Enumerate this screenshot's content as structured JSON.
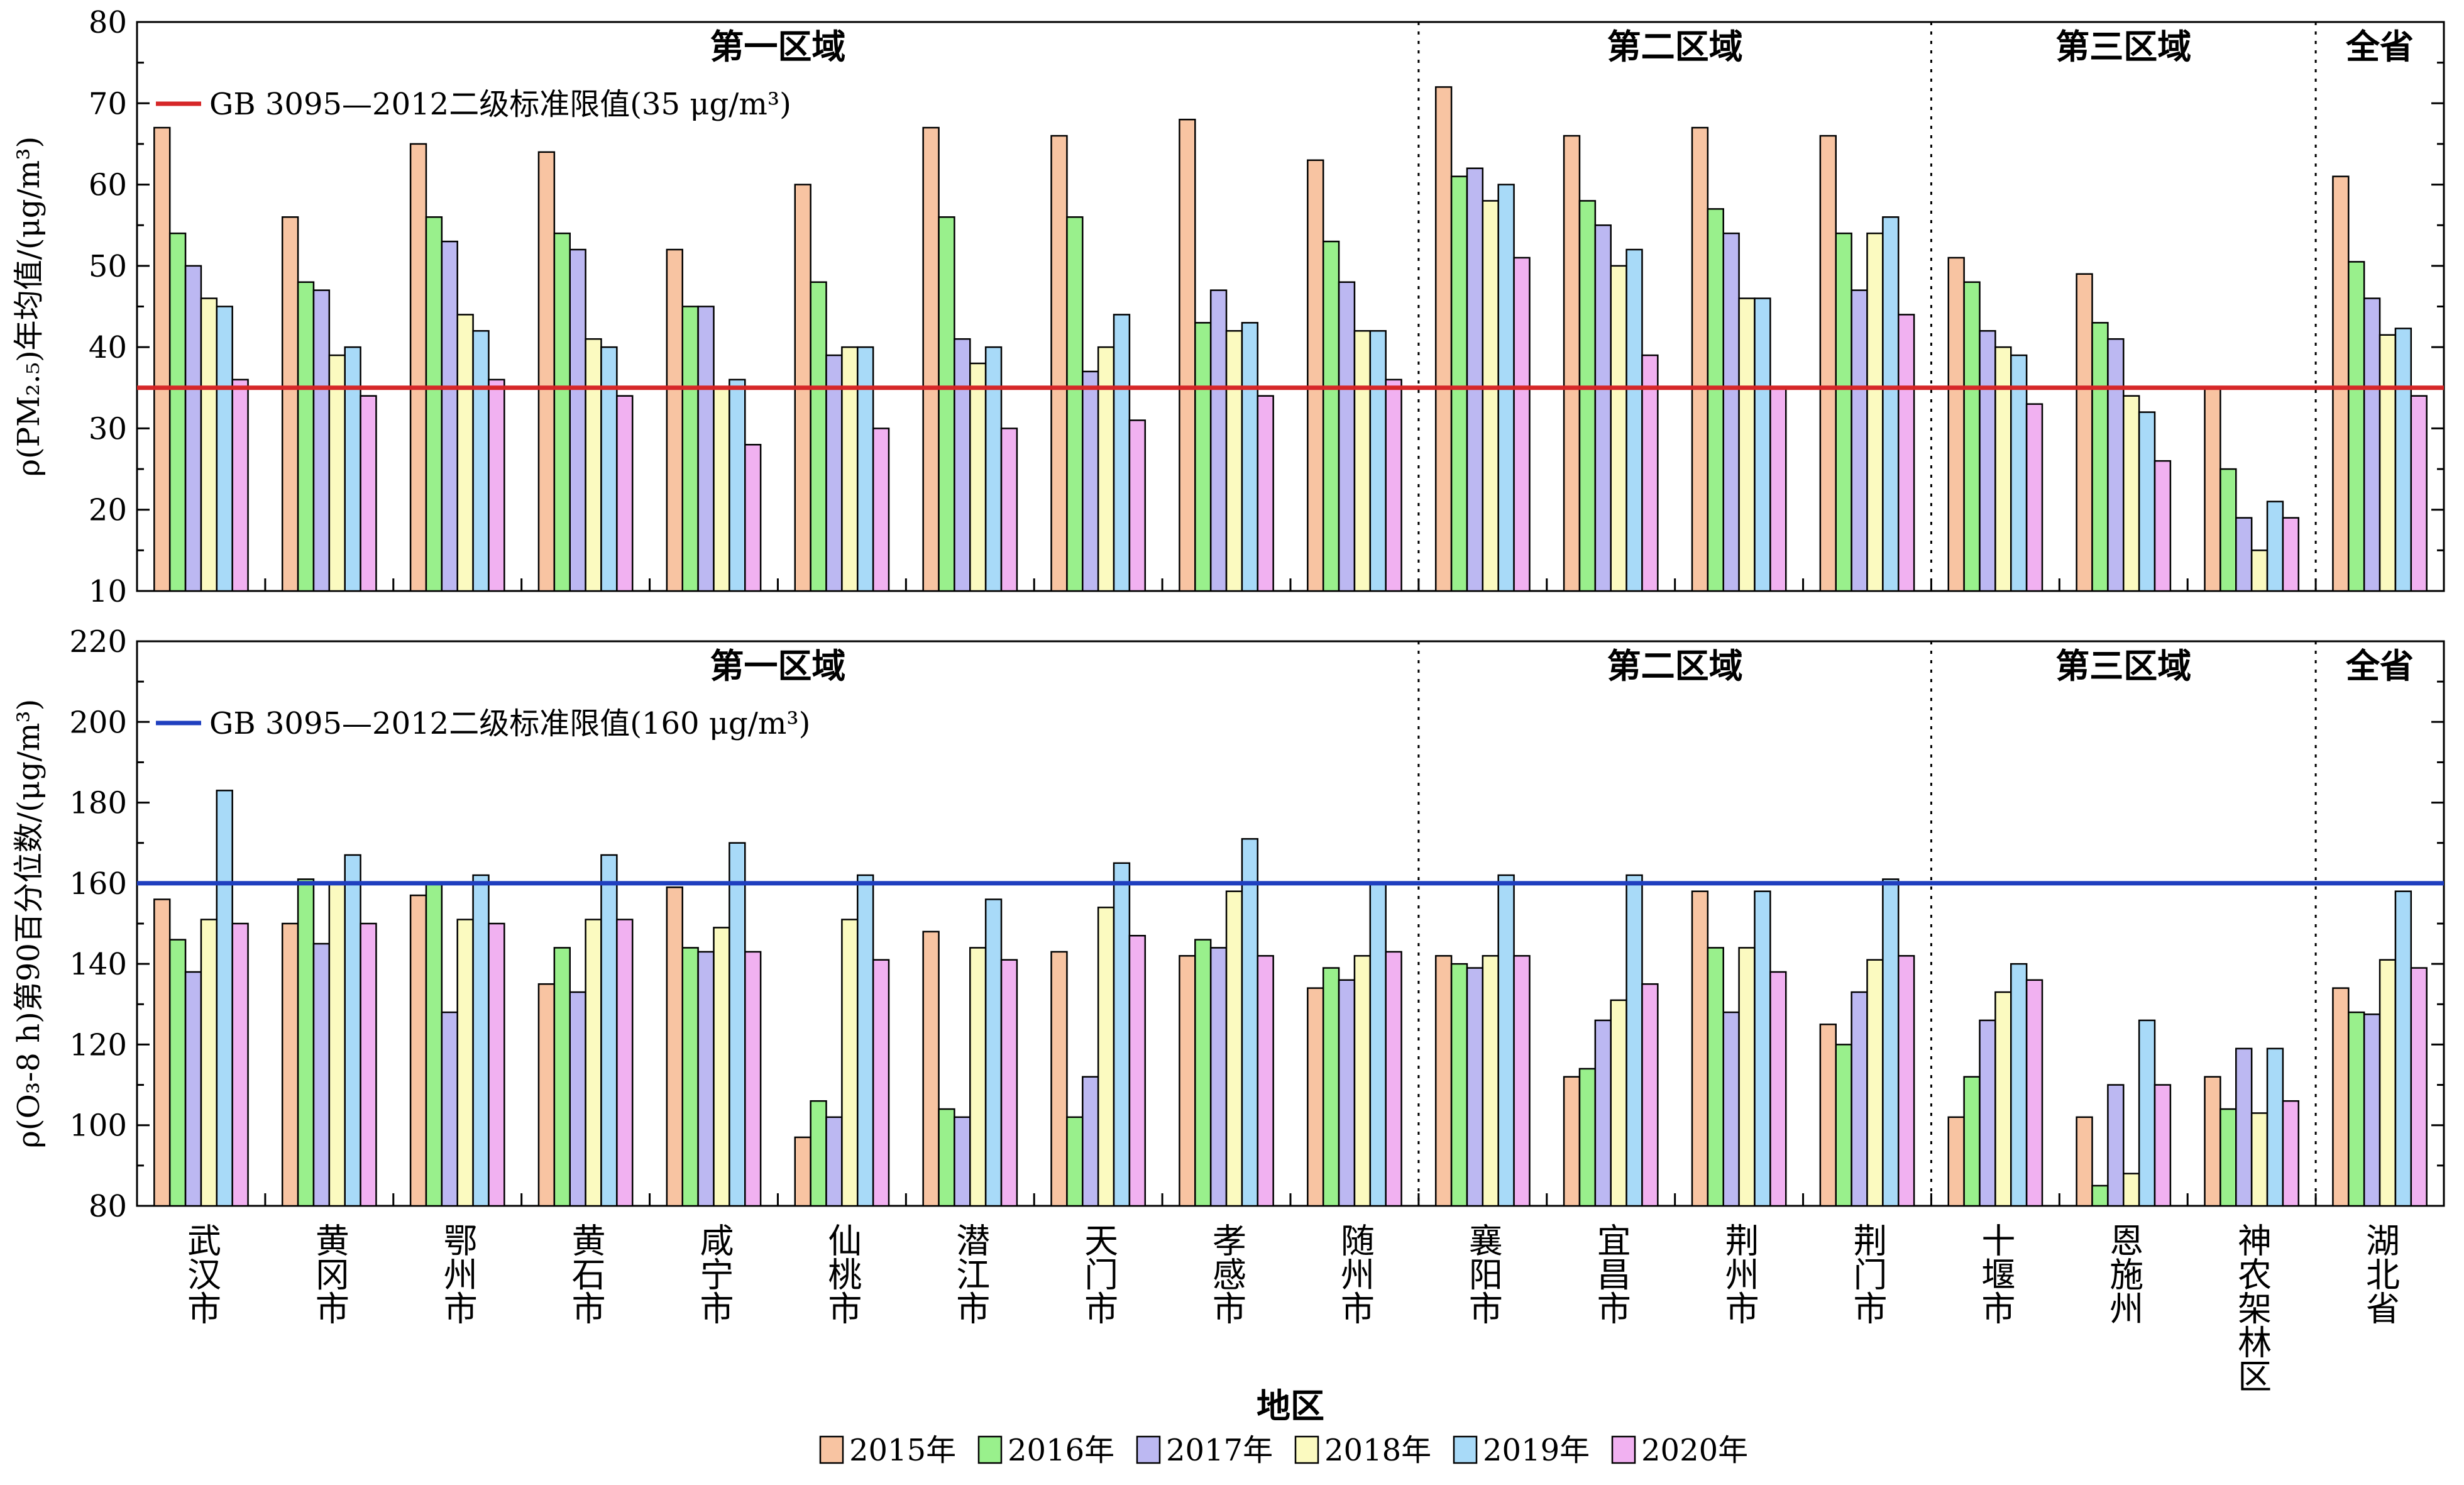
{
  "chart_data": [
    {
      "type": "bar",
      "categories": [
        "武汉市",
        "黄冈市",
        "鄂州市",
        "黄石市",
        "咸宁市",
        "仙桃市",
        "潜江市",
        "天门市",
        "孝感市",
        "随州市",
        "襄阳市",
        "宜昌市",
        "荆州市",
        "荆门市",
        "十堰市",
        "恩施州",
        "神农架林区",
        "湖北省"
      ],
      "series": [
        {
          "name": "2015年",
          "values": [
            67,
            56,
            65,
            64,
            52,
            60,
            67,
            66,
            68,
            63,
            72,
            66,
            67,
            66,
            51,
            49,
            35,
            61
          ]
        },
        {
          "name": "2016年",
          "values": [
            54,
            48,
            56,
            54,
            45,
            48,
            56,
            56,
            43,
            53,
            61,
            58,
            57,
            54,
            48,
            43,
            25,
            50.5
          ]
        },
        {
          "name": "2017年",
          "values": [
            50,
            47,
            53,
            52,
            45,
            39,
            41,
            37,
            47,
            48,
            62,
            55,
            54,
            47,
            42,
            41,
            19,
            46
          ]
        },
        {
          "name": "2018年",
          "values": [
            46,
            39,
            44,
            41,
            35,
            40,
            38,
            40,
            42,
            42,
            58,
            50,
            46,
            54,
            40,
            34,
            15,
            41.5
          ]
        },
        {
          "name": "2019年",
          "values": [
            45,
            40,
            42,
            40,
            36,
            40,
            40,
            44,
            43,
            42,
            60,
            52,
            46,
            56,
            39,
            32,
            21,
            42.3
          ]
        },
        {
          "name": "2020年",
          "values": [
            36,
            34,
            36,
            34,
            28,
            30,
            30,
            31,
            34,
            36,
            51,
            39,
            35,
            44,
            33,
            26,
            19,
            34
          ]
        }
      ],
      "regions": [
        {
          "label": "第一区域",
          "from": 0,
          "to": 9
        },
        {
          "label": "第二区域",
          "from": 10,
          "to": 13
        },
        {
          "label": "第三区域",
          "from": 14,
          "to": 16
        },
        {
          "label": "全省",
          "from": 17,
          "to": 17
        }
      ],
      "reference_line": {
        "value": 35,
        "label": "GB 3095—2012二级标准限值(35 μg/m³)",
        "color": "#d62728"
      },
      "ylabel": "ρ(PM₂.₅)年均值/(μg/m³)",
      "ylim": [
        10,
        80
      ],
      "yticks": [
        "10",
        "20",
        "30",
        "40",
        "50",
        "60",
        "70",
        "80"
      ]
    },
    {
      "type": "bar",
      "categories": [
        "武汉市",
        "黄冈市",
        "鄂州市",
        "黄石市",
        "咸宁市",
        "仙桃市",
        "潜江市",
        "天门市",
        "孝感市",
        "随州市",
        "襄阳市",
        "宜昌市",
        "荆州市",
        "荆门市",
        "十堰市",
        "恩施州",
        "神农架林区",
        "湖北省"
      ],
      "series": [
        {
          "name": "2015年",
          "values": [
            156,
            150,
            157,
            135,
            159,
            97,
            148,
            143,
            142,
            134,
            142,
            112,
            158,
            125,
            102,
            102,
            112,
            134
          ]
        },
        {
          "name": "2016年",
          "values": [
            146,
            161,
            160,
            144,
            144,
            106,
            104,
            102,
            146,
            139,
            140,
            114,
            144,
            120,
            112,
            85,
            104,
            128
          ]
        },
        {
          "name": "2017年",
          "values": [
            138,
            145,
            128,
            133,
            143,
            102,
            102,
            112,
            144,
            136,
            139,
            126,
            128,
            133,
            126,
            110,
            119,
            127.5
          ]
        },
        {
          "name": "2018年",
          "values": [
            151,
            160,
            151,
            151,
            149,
            151,
            144,
            154,
            158,
            142,
            142,
            131,
            144,
            141,
            133,
            88,
            103,
            141
          ]
        },
        {
          "name": "2019年",
          "values": [
            183,
            167,
            162,
            167,
            170,
            162,
            156,
            165,
            171,
            160,
            162,
            162,
            158,
            161,
            140,
            126,
            119,
            158
          ]
        },
        {
          "name": "2020年",
          "values": [
            150,
            150,
            150,
            151,
            143,
            141,
            141,
            147,
            142,
            143,
            142,
            135,
            138,
            142,
            136,
            110,
            106,
            139
          ]
        }
      ],
      "regions": [
        {
          "label": "第一区域",
          "from": 0,
          "to": 9
        },
        {
          "label": "第二区域",
          "from": 10,
          "to": 13
        },
        {
          "label": "第三区域",
          "from": 14,
          "to": 16
        },
        {
          "label": "全省",
          "from": 17,
          "to": 17
        }
      ],
      "reference_line": {
        "value": 160,
        "label": "GB 3095—2012二级标准限值(160 μg/m³)",
        "color": "#1f3fbf"
      },
      "ylabel": "ρ(O₃-8 h)第90百分位数/(μg/m³)",
      "ylim": [
        80,
        220
      ],
      "yticks": [
        "80",
        "100",
        "120",
        "140",
        "160",
        "180",
        "200",
        "220"
      ]
    }
  ],
  "xlabel": "地区",
  "legend": {
    "placement": "bottom",
    "entries": [
      "2015年",
      "2016年",
      "2017年",
      "2018年",
      "2019年",
      "2020年"
    ]
  },
  "colors": [
    "#f8c4a2",
    "#99f08c",
    "#bcb8f2",
    "#fbfac0",
    "#a8daf8",
    "#f1b1f1"
  ]
}
